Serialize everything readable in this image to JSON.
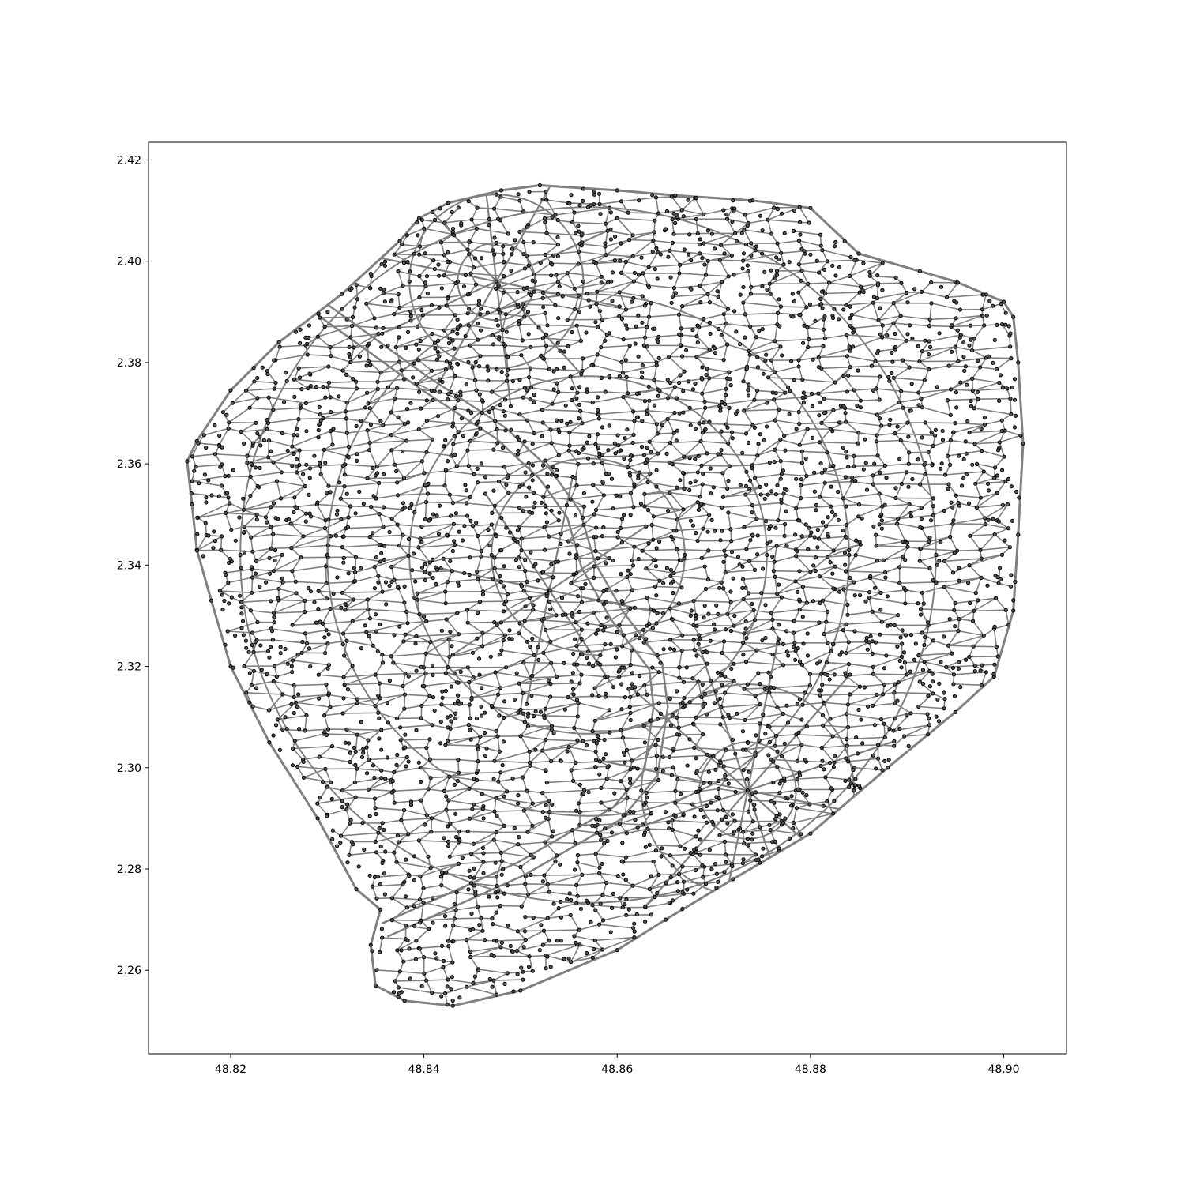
{
  "chart_data": {
    "type": "scatter",
    "description_kind": "street network graph (nodes and edges), no title",
    "title": "",
    "xlabel": "",
    "ylabel": "",
    "xlim": [
      48.8115,
      48.9065
    ],
    "ylim": [
      2.2435,
      2.4235
    ],
    "x_ticks": [
      "48.82",
      "48.84",
      "48.86",
      "48.88",
      "48.90"
    ],
    "x_tick_values": [
      48.82,
      48.84,
      48.86,
      48.88,
      48.9
    ],
    "y_ticks": [
      "2.26",
      "2.28",
      "2.30",
      "2.32",
      "2.34",
      "2.36",
      "2.38",
      "2.40",
      "2.42"
    ],
    "y_tick_values": [
      2.26,
      2.28,
      2.3,
      2.32,
      2.34,
      2.36,
      2.38,
      2.4,
      2.42
    ],
    "grid": false,
    "edge_color": "#808080",
    "node_color": "#555555",
    "node_edgecolor": "#000000",
    "outline": [
      [
        48.8155,
        2.3605
      ],
      [
        48.8165,
        2.3645
      ],
      [
        48.82,
        2.3745
      ],
      [
        48.825,
        2.384
      ],
      [
        48.8315,
        2.3935
      ],
      [
        48.8375,
        2.404
      ],
      [
        48.8395,
        2.4085
      ],
      [
        48.8425,
        2.4115
      ],
      [
        48.848,
        2.414
      ],
      [
        48.852,
        2.415
      ],
      [
        48.86,
        2.414
      ],
      [
        48.866,
        2.413
      ],
      [
        48.874,
        2.412
      ],
      [
        48.88,
        2.4105
      ],
      [
        48.885,
        2.4015
      ],
      [
        48.895,
        2.396
      ],
      [
        48.9,
        2.392
      ],
      [
        48.901,
        2.389
      ],
      [
        48.9015,
        2.38
      ],
      [
        48.902,
        2.364
      ],
      [
        48.9015,
        2.346
      ],
      [
        48.901,
        2.331
      ],
      [
        48.899,
        2.318
      ],
      [
        48.895,
        2.311
      ],
      [
        48.888,
        2.3
      ],
      [
        48.88,
        2.287
      ],
      [
        48.872,
        2.278
      ],
      [
        48.865,
        2.27
      ],
      [
        48.86,
        2.264
      ],
      [
        48.85,
        2.256
      ],
      [
        48.843,
        2.253
      ],
      [
        48.838,
        2.254
      ],
      [
        48.835,
        2.257
      ],
      [
        48.8345,
        2.265
      ],
      [
        48.8355,
        2.272
      ],
      [
        48.833,
        2.276
      ],
      [
        48.829,
        2.29
      ],
      [
        48.824,
        2.305
      ],
      [
        48.82,
        2.32
      ],
      [
        48.818,
        2.333
      ],
      [
        48.8165,
        2.343
      ],
      [
        48.816,
        2.352
      ]
    ],
    "river": [
      [
        48.836,
        2.268
      ],
      [
        48.85,
        2.28
      ],
      [
        48.86,
        2.291
      ],
      [
        48.8635,
        2.299
      ],
      [
        48.8645,
        2.312
      ],
      [
        48.864,
        2.32
      ],
      [
        48.86,
        2.33
      ],
      [
        48.857,
        2.34
      ],
      [
        48.8555,
        2.35
      ],
      [
        48.8525,
        2.358
      ],
      [
        48.848,
        2.366
      ],
      [
        48.84,
        2.376
      ],
      [
        48.832,
        2.387
      ],
      [
        48.828,
        2.3925
      ]
    ],
    "rings": [
      {
        "center": [
          48.857,
          2.342
        ],
        "radii": [
          0.01,
          0.0185,
          0.027,
          0.036
        ]
      },
      {
        "center": [
          48.8735,
          2.2955
        ],
        "radii": [
          0.005,
          0.011
        ]
      },
      {
        "center": [
          48.8475,
          2.396
        ],
        "radii": [
          0.004,
          0.009
        ]
      }
    ],
    "spokes": [
      {
        "center": [
          48.8735,
          2.2955
        ],
        "count": 12,
        "length": 0.016
      },
      {
        "center": [
          48.8475,
          2.396
        ],
        "count": 10,
        "length": 0.013
      },
      {
        "center": [
          48.853,
          2.335
        ],
        "count": 8,
        "length": 0.012
      }
    ],
    "grid_spacing": 0.0026,
    "node_count": 1900
  }
}
